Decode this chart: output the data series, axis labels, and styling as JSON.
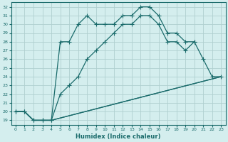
{
  "xlabel": "Humidex (Indice chaleur)",
  "bg_color": "#d4eeee",
  "grid_color": "#b0d0d0",
  "line_color": "#1a6b6b",
  "xlim": [
    -0.5,
    23.5
  ],
  "ylim": [
    18.5,
    32.5
  ],
  "xticks": [
    0,
    1,
    2,
    3,
    4,
    5,
    6,
    7,
    8,
    9,
    10,
    11,
    12,
    13,
    14,
    15,
    16,
    17,
    18,
    19,
    20,
    21,
    22,
    23
  ],
  "yticks": [
    19,
    20,
    21,
    22,
    23,
    24,
    25,
    26,
    27,
    28,
    29,
    30,
    31,
    32
  ],
  "series1_x": [
    0,
    1,
    2,
    3,
    4,
    5,
    6,
    7,
    8,
    9,
    10,
    11,
    12,
    13,
    14,
    15,
    16,
    17,
    18,
    19,
    20
  ],
  "series1_y": [
    20,
    20,
    19,
    19,
    19,
    28,
    28,
    30,
    31,
    30,
    30,
    30,
    31,
    31,
    32,
    32,
    31,
    29,
    29,
    28,
    28
  ],
  "series2_x": [
    0,
    1,
    2,
    3,
    4,
    5,
    6,
    7,
    8,
    9,
    10,
    11,
    12,
    13,
    14,
    15,
    16,
    17,
    18,
    19,
    20,
    21,
    22,
    23
  ],
  "series2_y": [
    20,
    20,
    19,
    19,
    19,
    22,
    23,
    24,
    26,
    27,
    28,
    29,
    30,
    30,
    31,
    31,
    30,
    28,
    28,
    27,
    28,
    26,
    24,
    24
  ],
  "series3_x": [
    0,
    1,
    2,
    3,
    4,
    23
  ],
  "series3_y": [
    20,
    20,
    19,
    19,
    19,
    24
  ],
  "series4_x": [
    0,
    1,
    2,
    3,
    4,
    23
  ],
  "series4_y": [
    20,
    20,
    19,
    19,
    19,
    24
  ]
}
